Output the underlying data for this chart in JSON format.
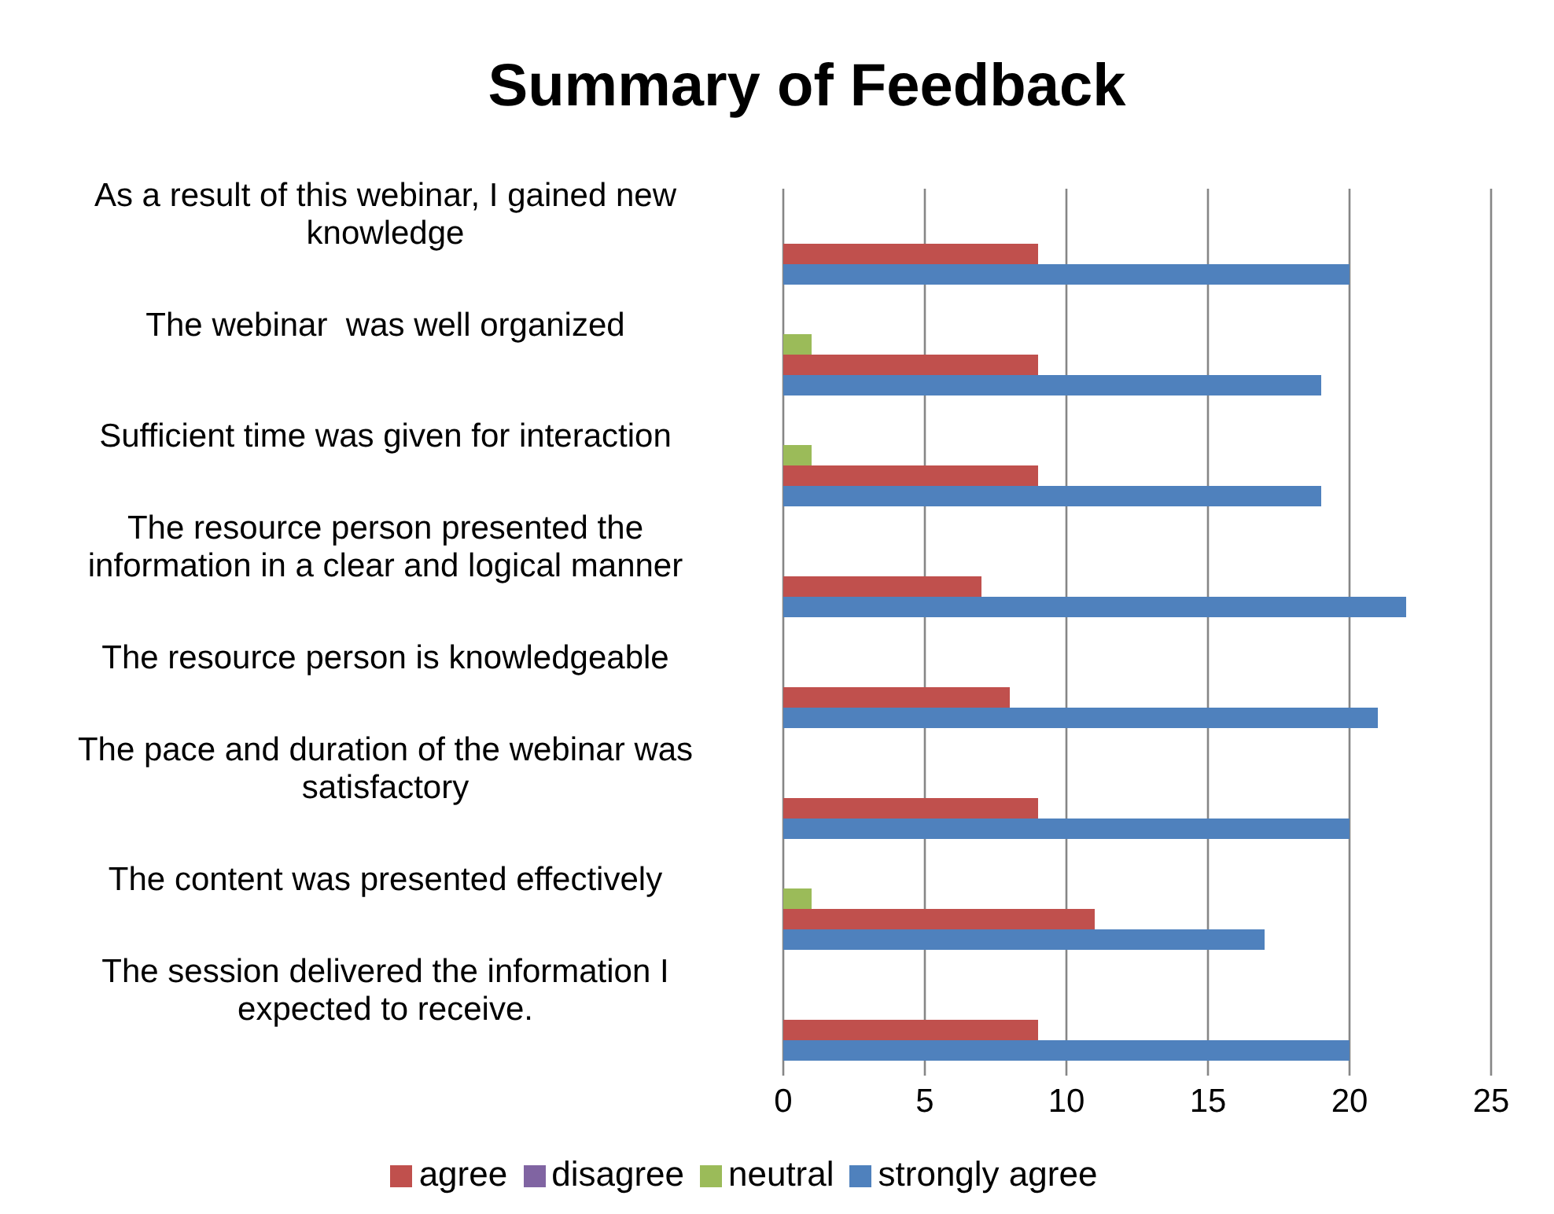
{
  "chart_data": {
    "type": "bar",
    "orientation": "horizontal",
    "title": "Summary of Feedback",
    "categories": [
      "As a result of this webinar, I gained new knowledge",
      "The webinar  was well organized",
      "Sufficient time was given for interaction",
      "The resource person presented the information in a clear and logical manner",
      "The resource person is knowledgeable",
      "The pace and duration of the webinar was satisfactory",
      "The content was presented effectively",
      "The session delivered the information I expected to receive."
    ],
    "series": [
      {
        "name": "disagree",
        "color": "#8064a2",
        "values": [
          0,
          0,
          0,
          0,
          0,
          0,
          0,
          0
        ]
      },
      {
        "name": "neutral",
        "color": "#9bbb59",
        "values": [
          0,
          1,
          1,
          0,
          0,
          0,
          1,
          0
        ]
      },
      {
        "name": "agree",
        "color": "#c0504d",
        "values": [
          9,
          9,
          9,
          7,
          8,
          9,
          11,
          9
        ]
      },
      {
        "name": "strongly agree",
        "color": "#4f81bd",
        "values": [
          20,
          19,
          19,
          22,
          21,
          20,
          17,
          20
        ]
      }
    ],
    "xlim": [
      0,
      25
    ],
    "xticks": [
      0,
      5,
      10,
      15,
      20,
      25
    ],
    "grid": "x",
    "legend": "bottom"
  }
}
